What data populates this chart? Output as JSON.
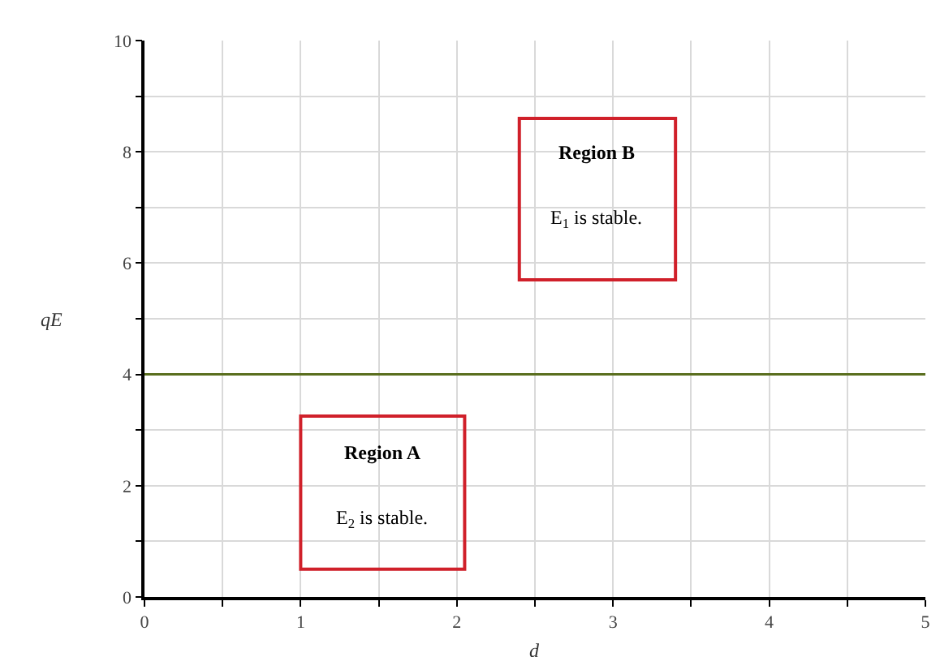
{
  "chart_data": {
    "type": "line",
    "xlabel": "d",
    "ylabel": "qE",
    "series": [
      {
        "color": "#5a6e1e",
        "x": [
          0,
          5
        ],
        "values": [
          4,
          4
        ]
      }
    ],
    "xlim": [
      0,
      5
    ],
    "ylim": [
      0,
      10
    ],
    "xticks": [
      0,
      {
        "value": 0.5,
        "label": null
      },
      1,
      {
        "value": 1.5,
        "label": null
      },
      2,
      {
        "value": 2.5,
        "label": null
      },
      3,
      {
        "value": 3.5,
        "label": null
      },
      4,
      {
        "value": 4.5,
        "label": null
      },
      5
    ],
    "yticks": [
      0,
      {
        "value": 1,
        "label": null
      },
      2,
      {
        "value": 3,
        "label": null
      },
      4,
      {
        "value": 5,
        "label": null
      },
      6,
      {
        "value": 7,
        "label": null
      },
      8,
      {
        "value": 9,
        "label": null
      },
      10
    ],
    "grid": true,
    "marker": "none",
    "line_style": "solid",
    "annotations": [
      "Region A",
      "E$_{2}$ is stable.",
      "Region B",
      "E$_{1}$ is stable."
    ]
  }
}
